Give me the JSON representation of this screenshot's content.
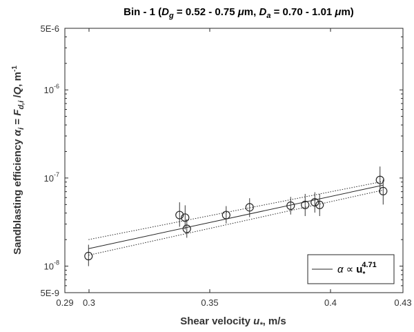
{
  "chart_data": {
    "type": "scatter",
    "title": {
      "prefix": "Bin - 1 (",
      "dg_sym": "D",
      "dg_sub": "g",
      "dg_range": " = 0.52 - 0.75 ",
      "mu1": "μ",
      "m1": "m, ",
      "da_sym": "D",
      "da_sub": "a",
      "da_range": " = 0.70 - 1.01 ",
      "mu2": "μ",
      "m2": "m)"
    },
    "xlabel": {
      "text": "Shear velocity ",
      "var": "u",
      "sub": "*",
      "unit": ", m/s"
    },
    "ylabel": {
      "text": "Sandblasting efficiency ",
      "alpha": "α",
      "sub_i": "i",
      "eq": " = ",
      "F": "F",
      "sub_di": "d,i",
      "slash": " /",
      "Q": "Q",
      "unit": ", m",
      "exp": "-1"
    },
    "xlim": [
      0.29,
      0.43
    ],
    "ylim": [
      5e-09,
      5e-06
    ],
    "yscale": "log",
    "grid": false,
    "x_ticks": [
      {
        "value": 0.29,
        "label": "0.29"
      },
      {
        "value": 0.3,
        "label": "0.3"
      },
      {
        "value": 0.35,
        "label": "0.35"
      },
      {
        "value": 0.4,
        "label": "0.4"
      },
      {
        "value": 0.43,
        "label": "0.43"
      }
    ],
    "y_ticks": [
      {
        "value": 5e-09,
        "base": "5E-9",
        "exp": ""
      },
      {
        "value": 1e-08,
        "base": "10",
        "exp": "-8"
      },
      {
        "value": 1e-07,
        "base": "10",
        "exp": "-7"
      },
      {
        "value": 1e-06,
        "base": "10",
        "exp": "-6"
      },
      {
        "value": 5e-06,
        "base": "5E-6",
        "exp": ""
      }
    ],
    "points": [
      {
        "x": 0.2998,
        "y": 1.3e-08,
        "err_low": 1e-08,
        "err_high": 1.75e-08
      },
      {
        "x": 0.3375,
        "y": 3.8e-08,
        "err_low": 2.8e-08,
        "err_high": 5.3e-08
      },
      {
        "x": 0.3398,
        "y": 3.55e-08,
        "err_low": 2.6e-08,
        "err_high": 4.9e-08
      },
      {
        "x": 0.3405,
        "y": 2.65e-08,
        "err_low": 2.1e-08,
        "err_high": 3.4e-08
      },
      {
        "x": 0.3568,
        "y": 3.8e-08,
        "err_low": 3.05e-08,
        "err_high": 4.8e-08
      },
      {
        "x": 0.3665,
        "y": 4.65e-08,
        "err_low": 3.6e-08,
        "err_high": 5.9e-08
      },
      {
        "x": 0.3835,
        "y": 4.85e-08,
        "err_low": 3.85e-08,
        "err_high": 6.1e-08
      },
      {
        "x": 0.3895,
        "y": 4.95e-08,
        "err_low": 3.7e-08,
        "err_high": 6.6e-08
      },
      {
        "x": 0.3935,
        "y": 5.3e-08,
        "err_low": 4.05e-08,
        "err_high": 6.9e-08
      },
      {
        "x": 0.3955,
        "y": 4.95e-08,
        "err_low": 3.7e-08,
        "err_high": 6.6e-08
      },
      {
        "x": 0.4205,
        "y": 9.5e-08,
        "err_low": 6.8e-08,
        "err_high": 1.35e-07
      },
      {
        "x": 0.4218,
        "y": 7.1e-08,
        "err_low": 5e-08,
        "err_high": 9.6e-08
      }
    ],
    "fit": {
      "exponent": "4.71",
      "x": [
        0.2998,
        0.4218
      ],
      "y": [
        1.58e-08,
        8.3e-08
      ]
    },
    "fit_lower": {
      "x": [
        0.2998,
        0.4218
      ],
      "y": [
        1.33e-08,
        7.3e-08
      ]
    },
    "fit_upper": {
      "x": [
        0.2998,
        0.4218
      ],
      "y": [
        2e-08,
        9.15e-08
      ]
    },
    "legend": {
      "position": "bottom-right",
      "alpha": "α",
      "propto": "∝",
      "var": "u",
      "sub": "*",
      "exp": "4.71"
    }
  }
}
